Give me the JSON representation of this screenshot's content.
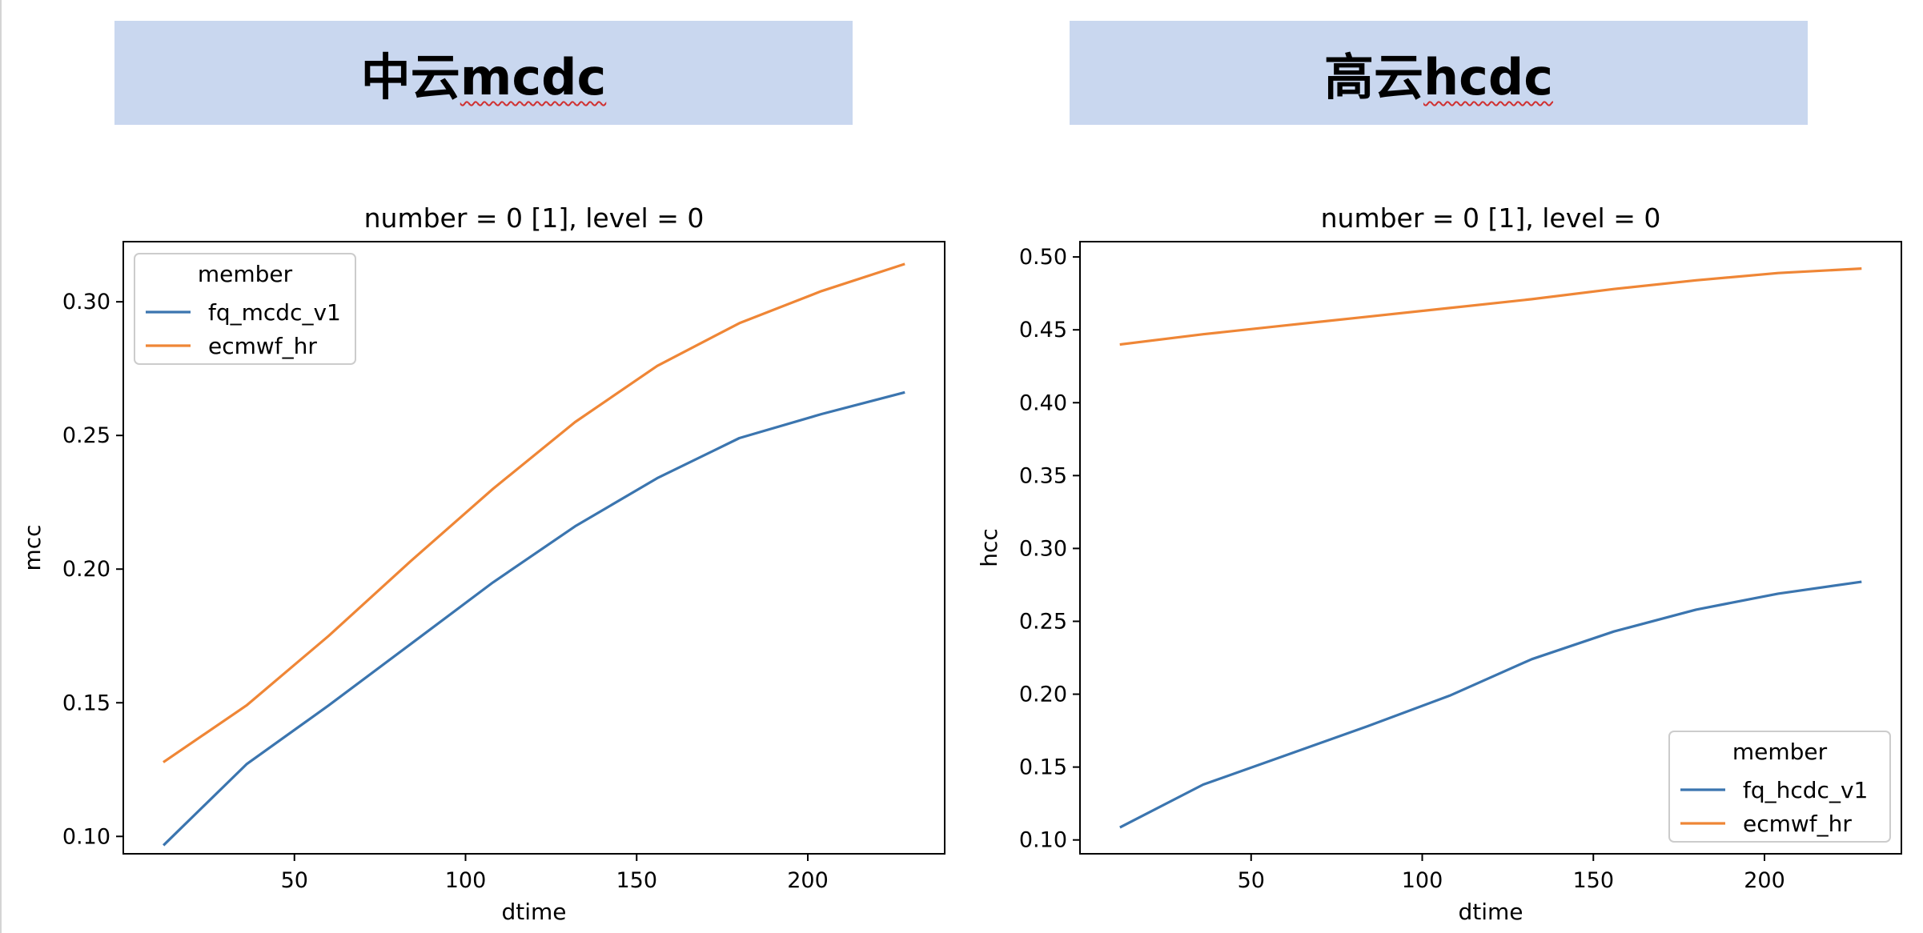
{
  "panels": [
    {
      "banner_cn": "中云",
      "banner_latin": "mcdc"
    },
    {
      "banner_cn": "高云",
      "banner_latin": "hcdc"
    }
  ],
  "chart_data": [
    {
      "type": "line",
      "title": "number = 0 [1], level = 0",
      "xlabel": "dtime",
      "ylabel": "mcc",
      "xlim": [
        0,
        240
      ],
      "ylim": [
        0.0935,
        0.3225
      ],
      "xticks": [
        50,
        100,
        150,
        200
      ],
      "yticks": [
        0.1,
        0.15,
        0.2,
        0.25,
        0.3
      ],
      "ytick_labels": [
        "0.10",
        "0.15",
        "0.20",
        "0.25",
        "0.30"
      ],
      "legend_title": "member",
      "legend_position": "upper-left",
      "x": [
        12,
        36,
        60,
        84,
        108,
        132,
        156,
        180,
        204,
        228
      ],
      "series": [
        {
          "name": "fq_mcdc_v1",
          "color": "#3b75af",
          "values": [
            0.097,
            0.127,
            0.149,
            0.172,
            0.195,
            0.216,
            0.234,
            0.249,
            0.258,
            0.266
          ]
        },
        {
          "name": "ecmwf_hr",
          "color": "#ef8636",
          "values": [
            0.128,
            0.149,
            0.175,
            0.203,
            0.23,
            0.255,
            0.276,
            0.292,
            0.304,
            0.314
          ]
        }
      ]
    },
    {
      "type": "line",
      "title": "number = 0 [1], level = 0",
      "xlabel": "dtime",
      "ylabel": "hcc",
      "xlim": [
        0,
        240
      ],
      "ylim": [
        0.0905,
        0.5105
      ],
      "xticks": [
        50,
        100,
        150,
        200
      ],
      "yticks": [
        0.1,
        0.15,
        0.2,
        0.25,
        0.3,
        0.35,
        0.4,
        0.45,
        0.5
      ],
      "ytick_labels": [
        "0.10",
        "0.15",
        "0.20",
        "0.25",
        "0.30",
        "0.35",
        "0.40",
        "0.45",
        "0.50"
      ],
      "legend_title": "member",
      "legend_position": "lower-right",
      "x": [
        12,
        36,
        60,
        84,
        108,
        132,
        156,
        180,
        204,
        228
      ],
      "series": [
        {
          "name": "fq_hcdc_v1",
          "color": "#3b75af",
          "values": [
            0.109,
            0.138,
            0.158,
            0.178,
            0.199,
            0.224,
            0.243,
            0.258,
            0.269,
            0.277
          ]
        },
        {
          "name": "ecmwf_hr",
          "color": "#ef8636",
          "values": [
            0.44,
            0.447,
            0.453,
            0.459,
            0.465,
            0.471,
            0.478,
            0.484,
            0.489,
            0.492
          ]
        }
      ]
    }
  ]
}
